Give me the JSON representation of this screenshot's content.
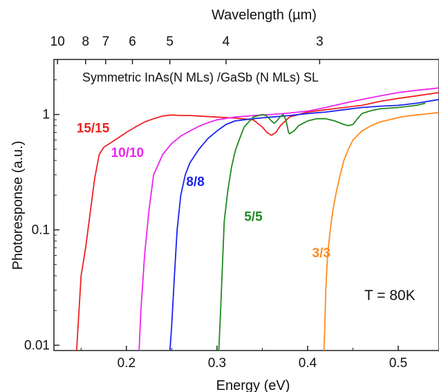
{
  "chart_data": {
    "type": "line",
    "title": "",
    "xlabel": "Energy (eV)",
    "ylabel": "Photoresponse (a.u.)",
    "top_xlabel": "Wavelength (µm)",
    "xlim": [
      0.12,
      0.545
    ],
    "ylim": [
      0.009,
      3.0
    ],
    "y_scale": "log",
    "x_ticks": [
      0.2,
      0.3,
      0.4,
      0.5
    ],
    "x_tick_labels": [
      "0.2",
      "0.3",
      "0.4",
      "0.5"
    ],
    "y_ticks": [
      0.01,
      0.1,
      1
    ],
    "y_tick_labels": [
      "0.01",
      "0.1",
      "1"
    ],
    "top_ticks": [
      10,
      8,
      7,
      6,
      5,
      4,
      3
    ],
    "top_tick_labels": [
      "10",
      "8",
      "7",
      "6",
      "5",
      "4",
      "3"
    ],
    "annotation": "Symmetric InAs(N MLs) /GaSb (N MLs) SL",
    "temperature_label": "T = 80K",
    "grid": false,
    "legend": "inline labels",
    "series": [
      {
        "name": "15/15",
        "color": "#ee2020",
        "x": [
          0.145,
          0.15,
          0.155,
          0.16,
          0.165,
          0.17,
          0.175,
          0.18,
          0.19,
          0.2,
          0.21,
          0.22,
          0.23,
          0.24,
          0.25,
          0.26,
          0.27,
          0.28,
          0.3,
          0.32,
          0.34,
          0.35,
          0.355,
          0.36,
          0.365,
          0.37,
          0.38,
          0.4,
          0.42,
          0.44,
          0.46,
          0.48,
          0.5,
          0.52,
          0.545
        ],
        "y": [
          0.009,
          0.04,
          0.07,
          0.14,
          0.28,
          0.45,
          0.52,
          0.55,
          0.62,
          0.7,
          0.78,
          0.86,
          0.92,
          0.97,
          0.99,
          0.98,
          0.98,
          0.97,
          0.95,
          0.93,
          0.9,
          0.78,
          0.7,
          0.66,
          0.7,
          0.8,
          0.95,
          1.05,
          1.1,
          1.15,
          1.2,
          1.3,
          1.38,
          1.45,
          1.55
        ]
      },
      {
        "name": "10/10",
        "color": "#ee22ee",
        "x": [
          0.214,
          0.216,
          0.22,
          0.225,
          0.23,
          0.24,
          0.25,
          0.26,
          0.27,
          0.28,
          0.29,
          0.3,
          0.32,
          0.34,
          0.36,
          0.38,
          0.4,
          0.42,
          0.44,
          0.46,
          0.48,
          0.5,
          0.52,
          0.545
        ],
        "y": [
          0.009,
          0.02,
          0.06,
          0.15,
          0.3,
          0.45,
          0.56,
          0.65,
          0.72,
          0.79,
          0.85,
          0.9,
          0.95,
          0.98,
          1.0,
          1.03,
          1.07,
          1.15,
          1.25,
          1.35,
          1.45,
          1.55,
          1.62,
          1.7
        ]
      },
      {
        "name": "8/8",
        "color": "#1a22ee",
        "x": [
          0.248,
          0.25,
          0.253,
          0.256,
          0.26,
          0.265,
          0.27,
          0.28,
          0.29,
          0.3,
          0.31,
          0.32,
          0.34,
          0.36,
          0.38,
          0.4,
          0.42,
          0.44,
          0.46,
          0.48,
          0.5,
          0.52,
          0.545
        ],
        "y": [
          0.009,
          0.015,
          0.04,
          0.1,
          0.2,
          0.3,
          0.38,
          0.5,
          0.62,
          0.72,
          0.82,
          0.88,
          0.92,
          0.95,
          0.98,
          1.02,
          1.05,
          1.1,
          1.15,
          1.18,
          1.2,
          1.25,
          1.35
        ]
      },
      {
        "name": "5/5",
        "color": "#1e8a1e",
        "x": [
          0.302,
          0.304,
          0.306,
          0.308,
          0.312,
          0.316,
          0.32,
          0.325,
          0.33,
          0.34,
          0.35,
          0.355,
          0.36,
          0.363,
          0.366,
          0.37,
          0.373,
          0.376,
          0.379,
          0.38,
          0.385,
          0.39,
          0.4,
          0.41,
          0.42,
          0.43,
          0.44,
          0.445,
          0.45,
          0.455,
          0.46,
          0.47,
          0.48,
          0.5,
          0.52,
          0.53
        ],
        "y": [
          0.009,
          0.02,
          0.05,
          0.12,
          0.22,
          0.35,
          0.48,
          0.62,
          0.78,
          0.95,
          1.0,
          0.97,
          0.88,
          0.84,
          0.88,
          0.96,
          1.0,
          0.9,
          0.7,
          0.68,
          0.72,
          0.8,
          0.88,
          0.92,
          0.92,
          0.88,
          0.82,
          0.8,
          0.82,
          0.92,
          1.02,
          1.08,
          1.12,
          1.15,
          1.2,
          1.25
        ]
      },
      {
        "name": "3/3",
        "color": "#ff8a1e",
        "x": [
          0.418,
          0.419,
          0.42,
          0.422,
          0.425,
          0.428,
          0.432,
          0.436,
          0.44,
          0.445,
          0.45,
          0.46,
          0.47,
          0.48,
          0.49,
          0.5,
          0.51,
          0.52,
          0.53,
          0.545
        ],
        "y": [
          0.009,
          0.015,
          0.03,
          0.06,
          0.1,
          0.15,
          0.22,
          0.3,
          0.4,
          0.5,
          0.6,
          0.72,
          0.8,
          0.86,
          0.9,
          0.94,
          0.97,
          0.99,
          1.01,
          1.04
        ]
      }
    ]
  }
}
